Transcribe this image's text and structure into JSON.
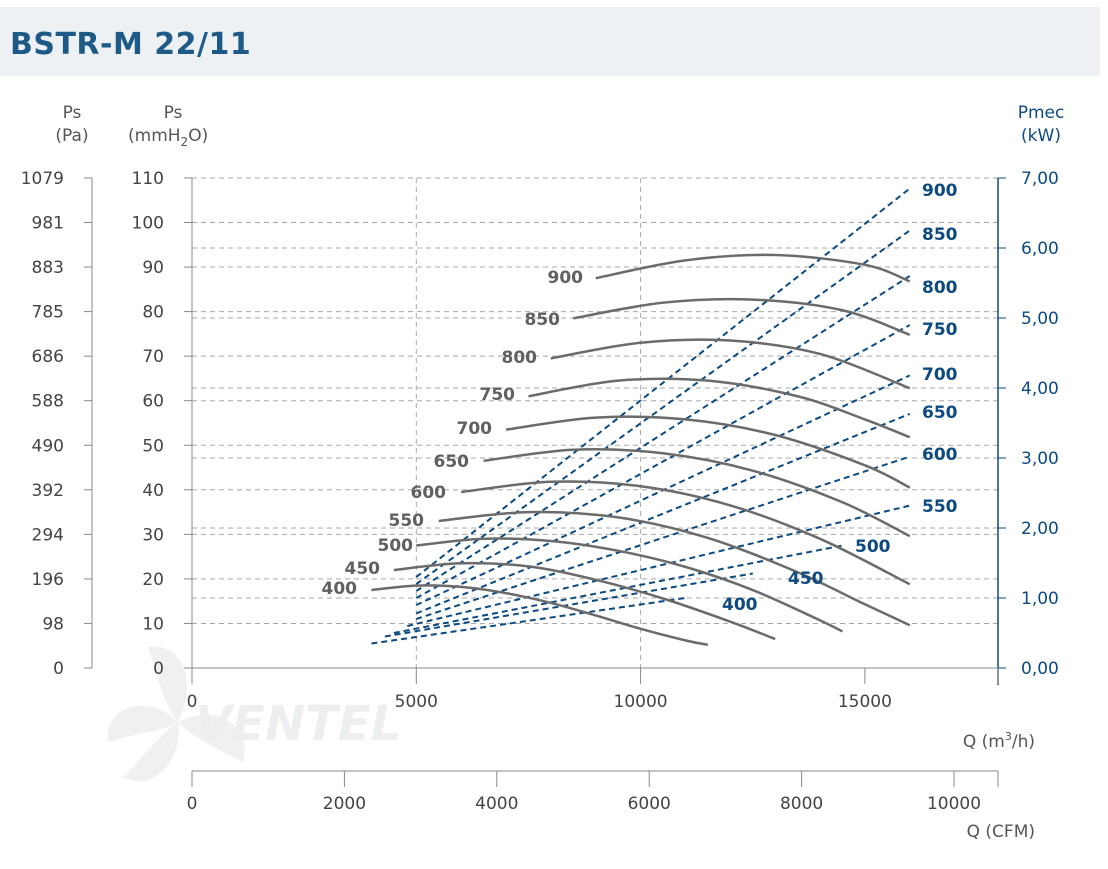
{
  "title": "BSTR-M 22/11",
  "axes": {
    "pa_label": "Ps",
    "pa_unit": "(Pa)",
    "mm_label": "Ps",
    "mm_unit_a": "(mmH",
    "mm_unit_sub": "2",
    "mm_unit_b": "O)",
    "pow_label": "Pmec",
    "pow_unit": "(kW)",
    "q_m3h_a": "Q (m",
    "q_m3h_sup": "3",
    "q_m3h_b": "/h)",
    "q_cfm": "Q (CFM)"
  },
  "watermark": "VENTEL",
  "colors": {
    "title": "#1d5a86",
    "pressure_curves": "#6b6b6b",
    "power_curves": "#0c4a80",
    "grid": "#a8a8a8",
    "header_bg": "#eef1f4"
  },
  "chart_data": {
    "type": "line",
    "x_axis": {
      "label": "Q (m3/h)",
      "ticks": [
        0,
        5000,
        10000,
        15000
      ],
      "range": [
        0,
        18000
      ]
    },
    "x2_axis": {
      "label": "Q (CFM)",
      "ticks": [
        0,
        2000,
        4000,
        6000,
        8000,
        10000
      ]
    },
    "y_axis_pa": {
      "label": "Ps (Pa)",
      "ticks": [
        "1079",
        "981",
        "883",
        "785",
        "686",
        "588",
        "490",
        "392",
        "294",
        "196",
        "98",
        "0"
      ]
    },
    "y_axis_mm": {
      "label": "Ps (mmH2O)",
      "ticks": [
        110,
        100,
        90,
        80,
        70,
        60,
        50,
        40,
        30,
        20,
        10,
        0
      ],
      "range": [
        0,
        110
      ]
    },
    "y_axis_kw": {
      "label": "Pmec (kW)",
      "ticks": [
        "7,00",
        "6,00",
        "5,00",
        "4,00",
        "3,00",
        "2,00",
        "1,00",
        "0,00"
      ],
      "range": [
        0,
        7
      ]
    },
    "pressure_series": [
      {
        "name": "400",
        "x": [
          4000,
          5000,
          6000,
          7000,
          8000,
          9000,
          10000,
          11000,
          11500
        ],
        "y": [
          17.5,
          18.5,
          18.2,
          16.8,
          14.6,
          11.8,
          8.8,
          6.2,
          5.2
        ]
      },
      {
        "name": "450",
        "x": [
          4500,
          6000,
          7500,
          9000,
          10500,
          12000,
          13000
        ],
        "y": [
          22,
          23.5,
          22.8,
          19.8,
          15.6,
          10.4,
          6.5
        ]
      },
      {
        "name": "500",
        "x": [
          5000,
          6500,
          8000,
          9500,
          11000,
          12500,
          14000,
          14500
        ],
        "y": [
          27.5,
          29.0,
          28.5,
          26.3,
          22.7,
          17.5,
          10.7,
          8.2
        ]
      },
      {
        "name": "550",
        "x": [
          5500,
          7500,
          9500,
          11500,
          13500,
          15000,
          16000
        ],
        "y": [
          33,
          35,
          33.8,
          29.2,
          21.5,
          14.3,
          9.6
        ]
      },
      {
        "name": "600",
        "x": [
          6000,
          8000,
          10000,
          12000,
          14000,
          16000
        ],
        "y": [
          39.5,
          41.8,
          40.8,
          36.5,
          29.0,
          18.8
        ]
      },
      {
        "name": "650",
        "x": [
          6500,
          8500,
          10500,
          12500,
          14500,
          16000
        ],
        "y": [
          46.5,
          49.0,
          48.2,
          44.3,
          37.2,
          29.6
        ]
      },
      {
        "name": "700",
        "x": [
          7000,
          9000,
          11000,
          13000,
          15000,
          16000
        ],
        "y": [
          53.5,
          56.2,
          55.8,
          52.3,
          45.5,
          40.5
        ]
      },
      {
        "name": "750",
        "x": [
          7500,
          9500,
          11500,
          13500,
          15000,
          16000
        ],
        "y": [
          61.0,
          64.5,
          64.5,
          61.0,
          55.8,
          51.8
        ]
      },
      {
        "name": "800",
        "x": [
          8000,
          10000,
          12000,
          14000,
          16000
        ],
        "y": [
          69.5,
          73.0,
          73.5,
          70.5,
          62.8
        ]
      },
      {
        "name": "850",
        "x": [
          8500,
          10500,
          12500,
          14500,
          16000
        ],
        "y": [
          78.5,
          82.0,
          82.7,
          80.3,
          74.8
        ]
      },
      {
        "name": "900",
        "x": [
          9000,
          11000,
          13000,
          15000,
          16000
        ],
        "y": [
          87.5,
          91.5,
          92.7,
          90.5,
          86.8
        ]
      }
    ],
    "power_series": [
      {
        "name": "400",
        "x": [
          4000,
          11000
        ],
        "y": [
          0.35,
          1.0
        ]
      },
      {
        "name": "450",
        "x": [
          4300,
          12500
        ],
        "y": [
          0.45,
          1.35
        ]
      },
      {
        "name": "500",
        "x": [
          4500,
          14500
        ],
        "y": [
          0.5,
          1.75
        ]
      },
      {
        "name": "550",
        "x": [
          4800,
          16000
        ],
        "y": [
          0.6,
          2.32
        ]
      },
      {
        "name": "600",
        "x": [
          5000,
          16000
        ],
        "y": [
          0.7,
          3.02
        ]
      },
      {
        "name": "650",
        "x": [
          5000,
          16000
        ],
        "y": [
          0.78,
          3.63
        ]
      },
      {
        "name": "700",
        "x": [
          5000,
          16000
        ],
        "y": [
          0.9,
          4.18
        ]
      },
      {
        "name": "750",
        "x": [
          5000,
          16000
        ],
        "y": [
          1.0,
          4.9
        ]
      },
      {
        "name": "800",
        "x": [
          5000,
          16000
        ],
        "y": [
          1.1,
          5.6
        ]
      },
      {
        "name": "850",
        "x": [
          5000,
          16000
        ],
        "y": [
          1.2,
          6.25
        ]
      },
      {
        "name": "900",
        "x": [
          5000,
          16000
        ],
        "y": [
          1.3,
          6.85
        ]
      }
    ],
    "pressure_labels": [
      "400",
      "450",
      "500",
      "550",
      "600",
      "650",
      "700",
      "750",
      "800",
      "850",
      "900"
    ],
    "power_labels": [
      "400",
      "450",
      "500",
      "550",
      "600",
      "650",
      "700",
      "750",
      "800",
      "850",
      "900"
    ],
    "grid": true
  }
}
